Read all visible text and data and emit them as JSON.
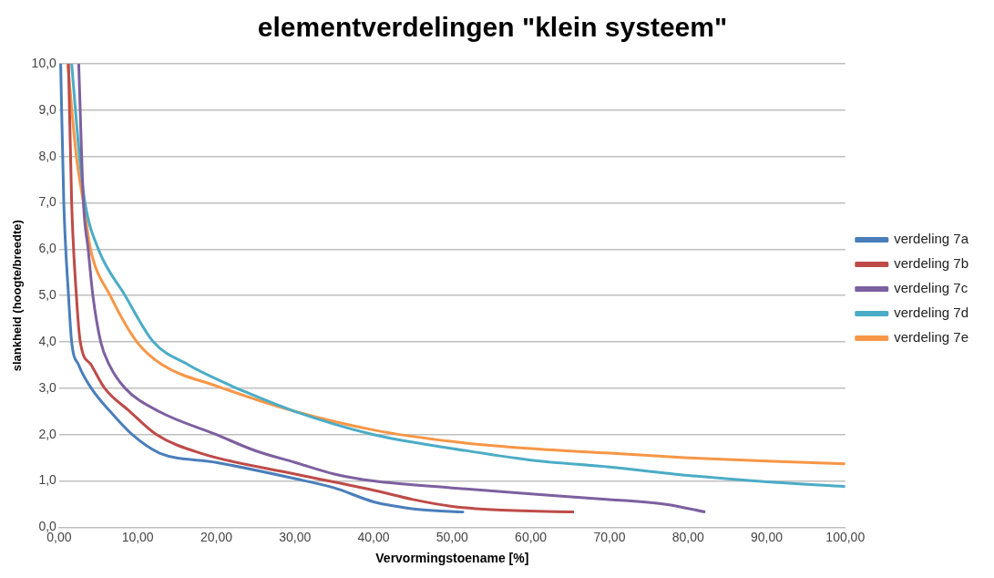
{
  "chart_data": {
    "type": "line",
    "title": "elementverdelingen \"klein systeem\"",
    "xlabel": "Vervormingstoename [%]",
    "ylabel": "slankheid (hoogte/breedte)",
    "xlim": [
      0,
      100
    ],
    "ylim": [
      0,
      10
    ],
    "xticks": [
      {
        "value": 0,
        "label": "0,00"
      },
      {
        "value": 10,
        "label": "10,00"
      },
      {
        "value": 20,
        "label": "20,00"
      },
      {
        "value": 30,
        "label": "30,00"
      },
      {
        "value": 40,
        "label": "40,00"
      },
      {
        "value": 50,
        "label": "50,00"
      },
      {
        "value": 60,
        "label": "60,00"
      },
      {
        "value": 70,
        "label": "70,00"
      },
      {
        "value": 80,
        "label": "80,00"
      },
      {
        "value": 90,
        "label": "90,00"
      },
      {
        "value": 100,
        "label": "100,00"
      }
    ],
    "yticks": [
      {
        "value": 0,
        "label": "0,0"
      },
      {
        "value": 1,
        "label": "1,0"
      },
      {
        "value": 2,
        "label": "2,0"
      },
      {
        "value": 3,
        "label": "3,0"
      },
      {
        "value": 4,
        "label": "4,0"
      },
      {
        "value": 5,
        "label": "5,0"
      },
      {
        "value": 6,
        "label": "6,0"
      },
      {
        "value": 7,
        "label": "7,0"
      },
      {
        "value": 8,
        "label": "8,0"
      },
      {
        "value": 9,
        "label": "9,0"
      },
      {
        "value": 10,
        "label": "10,0"
      }
    ],
    "grid": "y",
    "legend": "right",
    "marker": "none",
    "line_style": "solid",
    "series": [
      {
        "name": "verdeling 7a",
        "color": "#4a7ebb",
        "x": [
          0.2,
          0.6,
          1.2,
          1.6,
          2.5,
          4.1,
          6.5,
          9.3,
          12.8,
          20,
          30,
          35,
          40,
          43,
          46,
          51.5
        ],
        "values": [
          10,
          7,
          5,
          4,
          3.5,
          3,
          2.5,
          2,
          1.6,
          1.4,
          1.05,
          0.85,
          0.55,
          0.45,
          0.38,
          0.33
        ]
      },
      {
        "name": "verdeling 7b",
        "color": "#be4b48",
        "x": [
          1.2,
          1.6,
          2.2,
          2.7,
          4.1,
          5.8,
          9,
          12.4,
          18,
          30,
          40,
          45,
          50,
          55,
          65.5
        ],
        "values": [
          10,
          7,
          5,
          4,
          3.5,
          3,
          2.5,
          2,
          1.6,
          1.15,
          0.8,
          0.6,
          0.45,
          0.38,
          0.33
        ]
      },
      {
        "name": "verdeling 7c",
        "color": "#7d60a0",
        "x": [
          2.5,
          3.1,
          3.7,
          4.3,
          5.3,
          6.4,
          8.4,
          12.7,
          20,
          25,
          30,
          35,
          40,
          50,
          60,
          70,
          77,
          82.2
        ],
        "values": [
          10,
          7,
          6,
          5,
          4,
          3.5,
          3,
          2.5,
          2,
          1.65,
          1.4,
          1.15,
          1,
          0.85,
          0.72,
          0.6,
          0.5,
          0.33
        ]
      },
      {
        "name": "verdeling 7d",
        "color": "#4bacc6",
        "x": [
          1.6,
          2.6,
          3.3,
          5,
          8.4,
          12,
          16.5,
          20,
          24,
          30,
          40,
          50,
          60,
          70,
          80,
          90,
          100
        ],
        "values": [
          10,
          8,
          7,
          6,
          5,
          4,
          3.5,
          3.2,
          2.9,
          2.5,
          2,
          1.7,
          1.45,
          1.3,
          1.12,
          0.98,
          0.88
        ]
      },
      {
        "name": "verdeling 7e",
        "color": "#f79646",
        "x": [
          1.1,
          2.2,
          3.1,
          4,
          6.5,
          9.9,
          13.2,
          20,
          30,
          40,
          50,
          60,
          70,
          80,
          90,
          100
        ],
        "values": [
          10,
          8,
          7,
          6,
          5,
          4,
          3.5,
          3.05,
          2.5,
          2.1,
          1.85,
          1.7,
          1.6,
          1.5,
          1.43,
          1.37
        ]
      }
    ]
  }
}
